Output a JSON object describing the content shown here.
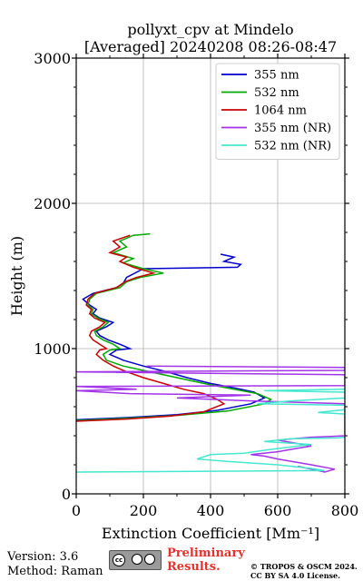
{
  "chart_data": {
    "type": "line",
    "title": "pollyxt_cpv at Mindelo",
    "subtitle": "[Averaged] 20240208 08:26-08:47",
    "xlabel": "Extinction Coefficient [Mm⁻¹]",
    "ylabel": "Height (m)",
    "xlim": [
      0,
      800
    ],
    "ylim": [
      0,
      3000
    ],
    "xticks": [
      "0",
      "200",
      "400",
      "600",
      "800"
    ],
    "yticks": [
      "0",
      "1000",
      "2000",
      "3000"
    ],
    "grid": true,
    "legend_position": "top-right",
    "series": [
      {
        "name": "355 nm",
        "color": "#0000cc",
        "points": [
          [
            0,
            510
          ],
          [
            150,
            525
          ],
          [
            300,
            545
          ],
          [
            420,
            575
          ],
          [
            520,
            620
          ],
          [
            560,
            660
          ],
          [
            530,
            700
          ],
          [
            470,
            730
          ],
          [
            400,
            760
          ],
          [
            330,
            800
          ],
          [
            270,
            840
          ],
          [
            200,
            880
          ],
          [
            140,
            920
          ],
          [
            100,
            960
          ],
          [
            120,
            990
          ],
          [
            160,
            1000
          ],
          [
            130,
            1030
          ],
          [
            95,
            1060
          ],
          [
            70,
            1090
          ],
          [
            60,
            1120
          ],
          [
            90,
            1150
          ],
          [
            110,
            1180
          ],
          [
            70,
            1210
          ],
          [
            50,
            1240
          ],
          [
            60,
            1270
          ],
          [
            40,
            1300
          ],
          [
            20,
            1340
          ],
          [
            50,
            1380
          ],
          [
            120,
            1420
          ],
          [
            140,
            1450
          ],
          [
            150,
            1490
          ],
          [
            200,
            1550
          ],
          [
            480,
            1560
          ],
          [
            490,
            1580
          ],
          [
            440,
            1600
          ],
          [
            470,
            1630
          ],
          [
            430,
            1650
          ]
        ]
      },
      {
        "name": "532 nm",
        "color": "#00aa00",
        "points": [
          [
            0,
            505
          ],
          [
            150,
            520
          ],
          [
            300,
            540
          ],
          [
            450,
            570
          ],
          [
            560,
            620
          ],
          [
            580,
            650
          ],
          [
            540,
            690
          ],
          [
            470,
            720
          ],
          [
            380,
            760
          ],
          [
            300,
            800
          ],
          [
            220,
            840
          ],
          [
            140,
            880
          ],
          [
            90,
            920
          ],
          [
            80,
            960
          ],
          [
            100,
            990
          ],
          [
            130,
            1000
          ],
          [
            110,
            1030
          ],
          [
            80,
            1060
          ],
          [
            60,
            1090
          ],
          [
            55,
            1120
          ],
          [
            80,
            1150
          ],
          [
            95,
            1180
          ],
          [
            65,
            1210
          ],
          [
            45,
            1240
          ],
          [
            50,
            1270
          ],
          [
            35,
            1300
          ],
          [
            40,
            1340
          ],
          [
            60,
            1380
          ],
          [
            130,
            1420
          ],
          [
            150,
            1460
          ],
          [
            190,
            1490
          ],
          [
            260,
            1520
          ],
          [
            200,
            1550
          ],
          [
            140,
            1590
          ],
          [
            170,
            1620
          ],
          [
            110,
            1660
          ],
          [
            150,
            1700
          ],
          [
            130,
            1740
          ],
          [
            170,
            1780
          ],
          [
            220,
            1790
          ]
        ]
      },
      {
        "name": "1064 nm",
        "color": "#cc0000",
        "points": [
          [
            0,
            500
          ],
          [
            150,
            515
          ],
          [
            280,
            535
          ],
          [
            380,
            565
          ],
          [
            440,
            620
          ],
          [
            420,
            650
          ],
          [
            380,
            690
          ],
          [
            320,
            720
          ],
          [
            260,
            760
          ],
          [
            200,
            800
          ],
          [
            150,
            840
          ],
          [
            110,
            880
          ],
          [
            80,
            920
          ],
          [
            60,
            960
          ],
          [
            70,
            990
          ],
          [
            90,
            1000
          ],
          [
            70,
            1030
          ],
          [
            50,
            1060
          ],
          [
            40,
            1090
          ],
          [
            45,
            1120
          ],
          [
            70,
            1150
          ],
          [
            85,
            1180
          ],
          [
            55,
            1210
          ],
          [
            40,
            1240
          ],
          [
            45,
            1270
          ],
          [
            30,
            1300
          ],
          [
            35,
            1340
          ],
          [
            55,
            1380
          ],
          [
            120,
            1420
          ],
          [
            145,
            1460
          ],
          [
            180,
            1490
          ],
          [
            230,
            1520
          ],
          [
            170,
            1560
          ],
          [
            130,
            1600
          ],
          [
            150,
            1630
          ],
          [
            100,
            1660
          ],
          [
            130,
            1700
          ],
          [
            110,
            1740
          ],
          [
            160,
            1780
          ]
        ]
      },
      {
        "name": "355 nm (NR)",
        "color": "#a233e8",
        "points": [
          [
            660,
            190
          ],
          [
            740,
            150
          ],
          [
            770,
            170
          ],
          [
            700,
            200
          ],
          [
            600,
            240
          ],
          [
            560,
            260
          ],
          [
            520,
            270
          ],
          [
            600,
            290
          ],
          [
            650,
            310
          ],
          [
            700,
            330
          ],
          [
            650,
            350
          ],
          [
            600,
            370
          ],
          [
            700,
            390
          ],
          [
            760,
            395
          ],
          [
            800,
            400
          ],
          [
            800,
            620
          ],
          [
            520,
            640
          ],
          [
            300,
            660
          ],
          [
            520,
            680
          ],
          [
            160,
            690
          ],
          [
            0,
            710
          ],
          [
            180,
            720
          ],
          [
            0,
            740
          ],
          [
            800,
            745
          ],
          [
            800,
            820
          ],
          [
            0,
            840
          ],
          [
            800,
            850
          ],
          [
            800,
            870
          ],
          [
            210,
            880
          ]
        ]
      },
      {
        "name": "532 nm (NR)",
        "color": "#44e8d0",
        "points": [
          [
            0,
            150
          ],
          [
            740,
            160
          ],
          [
            700,
            175
          ],
          [
            600,
            200
          ],
          [
            470,
            220
          ],
          [
            360,
            240
          ],
          [
            400,
            270
          ],
          [
            500,
            280
          ],
          [
            560,
            300
          ],
          [
            630,
            320
          ],
          [
            700,
            340
          ],
          [
            560,
            360
          ],
          [
            640,
            380
          ],
          [
            780,
            385
          ],
          [
            800,
            390
          ],
          [
            800,
            550
          ],
          [
            720,
            560
          ],
          [
            800,
            580
          ],
          [
            800,
            610
          ],
          [
            540,
            620
          ],
          [
            640,
            640
          ],
          [
            800,
            660
          ],
          [
            800,
            700
          ],
          [
            560,
            710
          ],
          [
            800,
            720
          ]
        ]
      }
    ]
  },
  "footer": {
    "version": "Version: 3.6",
    "method": "Method: Raman",
    "preliminary_line1": "Preliminary",
    "preliminary_line2": "Results.",
    "copyright_line1": "© TROPOS & OSCM 2024.",
    "copyright_line2": "CC BY SA 4.0 License."
  }
}
